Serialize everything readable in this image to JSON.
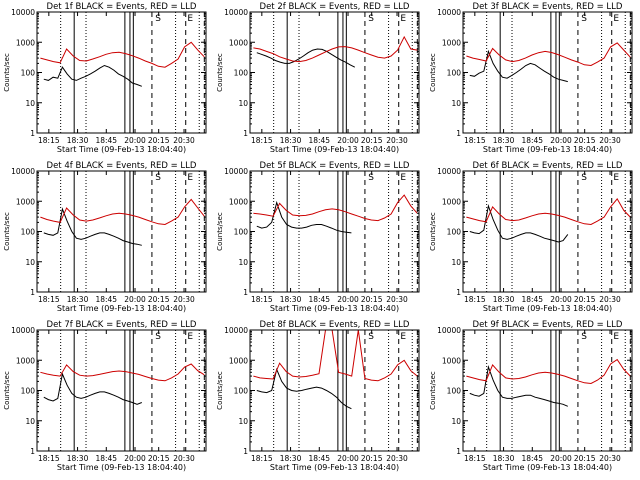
{
  "chart_data": [
    {
      "type": "line",
      "title": "Det 1f BLACK = Events, RED = LLD",
      "xlabel": "Start Time (09-Feb-13 18:04:40)",
      "ylabel": "Counts/sec",
      "x_ticks": [
        "18:15",
        "18:30",
        "18:45",
        "20:00",
        "20:15",
        "20:30"
      ],
      "y_ticks": [
        "1",
        "10",
        "100",
        "1000",
        "10000"
      ],
      "ylim": [
        1,
        10000
      ],
      "yscale": "log",
      "grid": false,
      "markers": [
        "S",
        "E"
      ],
      "series": [
        {
          "name": "Events",
          "color": "#000000",
          "values": [
            60,
            55,
            70,
            65,
            150,
            90,
            60,
            55,
            65,
            75,
            90,
            110,
            140,
            170,
            150,
            120,
            90,
            75,
            60,
            45,
            40,
            35
          ]
        },
        {
          "name": "LLD",
          "color": "#cc0000",
          "values": [
            300,
            260,
            230,
            210,
            600,
            350,
            250,
            240,
            280,
            330,
            400,
            450,
            470,
            420,
            360,
            300,
            240,
            200,
            160,
            150,
            200,
            280,
            700,
            1000,
            550,
            330
          ]
        }
      ]
    },
    {
      "type": "line",
      "title": "Det 2f BLACK = Events, RED = LLD",
      "xlabel": "Start Time (09-Feb-13 18:04:40)",
      "ylabel": "Counts/sec",
      "x_ticks": [
        "18:15",
        "18:30",
        "18:45",
        "20:00",
        "20:15",
        "20:30"
      ],
      "y_ticks": [
        "1",
        "10",
        "100",
        "1000",
        "10000"
      ],
      "ylim": [
        1,
        10000
      ],
      "yscale": "log",
      "grid": false,
      "markers": [
        "S",
        "E"
      ],
      "series": [
        {
          "name": "Events",
          "color": "#000000",
          "values": [
            450,
            400,
            350,
            300,
            250,
            220,
            200,
            200,
            230,
            280,
            350,
            450,
            550,
            600,
            580,
            500,
            400,
            320,
            260,
            220,
            180,
            150
          ]
        },
        {
          "name": "LLD",
          "color": "#cc0000",
          "values": [
            650,
            600,
            500,
            420,
            330,
            280,
            240,
            230,
            250,
            300,
            380,
            480,
            600,
            700,
            720,
            650,
            550,
            450,
            380,
            320,
            300,
            350,
            550,
            1500,
            600,
            550
          ]
        }
      ]
    },
    {
      "type": "line",
      "title": "Det 3f BLACK = Events, RED = LLD",
      "xlabel": "Start Time (09-Feb-13 18:04:40)",
      "ylabel": "Counts/sec",
      "x_ticks": [
        "18:15",
        "18:30",
        "18:45",
        "20:00",
        "20:15",
        "20:30"
      ],
      "y_ticks": [
        "1",
        "10",
        "100",
        "1000",
        "10000"
      ],
      "ylim": [
        1,
        10000
      ],
      "yscale": "log",
      "grid": false,
      "markers": [
        "S",
        "E"
      ],
      "series": [
        {
          "name": "Events",
          "color": "#000000",
          "values": [
            80,
            75,
            95,
            110,
            500,
            200,
            110,
            70,
            65,
            80,
            100,
            130,
            170,
            200,
            180,
            140,
            110,
            90,
            70,
            60,
            55,
            50
          ]
        },
        {
          "name": "LLD",
          "color": "#cc0000",
          "values": [
            350,
            300,
            270,
            240,
            620,
            380,
            260,
            230,
            250,
            300,
            380,
            450,
            500,
            460,
            390,
            320,
            260,
            220,
            180,
            170,
            220,
            300,
            700,
            950,
            550,
            320
          ]
        }
      ]
    },
    {
      "type": "line",
      "title": "Det 4f BLACK = Events, RED = LLD",
      "xlabel": "Start Time (09-Feb-13 18:04:40)",
      "ylabel": "Counts/sec",
      "x_ticks": [
        "18:15",
        "18:30",
        "18:45",
        "20:00",
        "20:15",
        "20:30"
      ],
      "y_ticks": [
        "1",
        "10",
        "100",
        "1000",
        "10000"
      ],
      "ylim": [
        1,
        10000
      ],
      "yscale": "log",
      "grid": false,
      "markers": [
        "S",
        "E"
      ],
      "series": [
        {
          "name": "Events",
          "color": "#000000",
          "values": [
            90,
            80,
            75,
            90,
            550,
            220,
            100,
            60,
            55,
            60,
            70,
            80,
            90,
            90,
            80,
            70,
            60,
            50,
            45,
            40,
            38,
            35
          ]
        },
        {
          "name": "LLD",
          "color": "#cc0000",
          "values": [
            300,
            250,
            220,
            200,
            600,
            350,
            240,
            220,
            240,
            280,
            330,
            380,
            400,
            380,
            340,
            300,
            250,
            210,
            180,
            170,
            220,
            300,
            650,
            1150,
            600,
            320
          ]
        }
      ]
    },
    {
      "type": "line",
      "title": "Det 5f BLACK = Events, RED = LLD",
      "xlabel": "Start Time (09-Feb-13 18:04:40)",
      "ylabel": "Counts/sec",
      "x_ticks": [
        "18:15",
        "18:30",
        "18:45",
        "20:00",
        "20:15",
        "20:30"
      ],
      "y_ticks": [
        "1",
        "10",
        "100",
        "1000",
        "10000"
      ],
      "ylim": [
        1,
        10000
      ],
      "yscale": "log",
      "grid": false,
      "markers": [
        "S",
        "E"
      ],
      "series": [
        {
          "name": "Events",
          "color": "#000000",
          "values": [
            150,
            130,
            140,
            200,
            900,
            300,
            170,
            140,
            130,
            130,
            140,
            160,
            170,
            170,
            150,
            130,
            110,
            100,
            95,
            90
          ]
        },
        {
          "name": "LLD",
          "color": "#cc0000",
          "values": [
            400,
            380,
            350,
            320,
            850,
            500,
            350,
            330,
            340,
            380,
            450,
            520,
            560,
            520,
            450,
            380,
            320,
            270,
            240,
            230,
            280,
            380,
            900,
            1600,
            700,
            400
          ]
        }
      ]
    },
    {
      "type": "line",
      "title": "Det 6f BLACK = Events, RED = LLD",
      "xlabel": "Start Time (09-Feb-13 18:04:40)",
      "ylabel": "Counts/sec",
      "x_ticks": [
        "18:15",
        "18:30",
        "18:45",
        "20:00",
        "20:15",
        "20:30"
      ],
      "y_ticks": [
        "1",
        "10",
        "100",
        "1000",
        "10000"
      ],
      "ylim": [
        1,
        10000
      ],
      "yscale": "log",
      "grid": false,
      "markers": [
        "S",
        "E"
      ],
      "series": [
        {
          "name": "Events",
          "color": "#000000",
          "values": [
            100,
            90,
            85,
            110,
            700,
            250,
            110,
            60,
            55,
            60,
            70,
            80,
            90,
            90,
            80,
            70,
            60,
            55,
            50,
            45,
            50,
            80
          ]
        },
        {
          "name": "LLD",
          "color": "#cc0000",
          "values": [
            300,
            260,
            230,
            210,
            650,
            380,
            250,
            230,
            240,
            280,
            330,
            380,
            400,
            380,
            340,
            300,
            250,
            210,
            180,
            170,
            220,
            300,
            650,
            1200,
            500,
            300
          ]
        }
      ]
    },
    {
      "type": "line",
      "title": "Det 7f BLACK = Events, RED = LLD",
      "xlabel": "Start Time (09-Feb-13 18:04:40)",
      "ylabel": "Counts/sec",
      "x_ticks": [
        "18:15",
        "18:30",
        "18:45",
        "20:00",
        "20:15",
        "20:30"
      ],
      "y_ticks": [
        "1",
        "10",
        "100",
        "1000",
        "10000"
      ],
      "ylim": [
        1,
        10000
      ],
      "yscale": "log",
      "grid": false,
      "markers": [
        "S",
        "E"
      ],
      "series": [
        {
          "name": "Events",
          "color": "#000000",
          "values": [
            60,
            50,
            45,
            55,
            350,
            150,
            80,
            60,
            55,
            60,
            70,
            80,
            90,
            90,
            80,
            70,
            60,
            50,
            45,
            40,
            35,
            40
          ]
        },
        {
          "name": "LLD",
          "color": "#cc0000",
          "values": [
            400,
            350,
            320,
            300,
            700,
            420,
            320,
            300,
            310,
            340,
            380,
            420,
            440,
            420,
            380,
            340,
            290,
            250,
            220,
            210,
            260,
            350,
            600,
            750,
            450,
            330
          ]
        }
      ]
    },
    {
      "type": "line",
      "title": "Det 8f BLACK = Events, RED = LLD",
      "xlabel": "Start Time (09-Feb-13 18:04:40)",
      "ylabel": "Counts/sec",
      "x_ticks": [
        "18:15",
        "18:30",
        "18:45",
        "20:00",
        "20:15",
        "20:30"
      ],
      "y_ticks": [
        "1",
        "10",
        "100",
        "1000",
        "10000"
      ],
      "ylim": [
        1,
        10000
      ],
      "yscale": "log",
      "grid": false,
      "markers": [
        "S",
        "E"
      ],
      "series": [
        {
          "name": "Events",
          "color": "#000000",
          "values": [
            100,
            90,
            85,
            100,
            500,
            200,
            120,
            100,
            95,
            100,
            110,
            120,
            130,
            120,
            100,
            80,
            60,
            40,
            30,
            25
          ]
        },
        {
          "name": "LLD",
          "color": "#cc0000",
          "values": [
            300,
            260,
            250,
            240,
            800,
            420,
            300,
            280,
            290,
            320,
            360,
            10000,
            10000,
            400,
            350,
            300,
            10000,
            250,
            220,
            210,
            260,
            350,
            700,
            1000,
            450,
            300
          ]
        }
      ]
    },
    {
      "type": "line",
      "title": "Det 9f BLACK = Events, RED = LLD",
      "xlabel": "Start Time (09-Feb-13 18:04:40)",
      "ylabel": "Counts/sec",
      "x_ticks": [
        "18:15",
        "18:30",
        "18:45",
        "20:00",
        "20:15",
        "20:30"
      ],
      "y_ticks": [
        "1",
        "10",
        "100",
        "1000",
        "10000"
      ],
      "ylim": [
        1,
        10000
      ],
      "yscale": "log",
      "grid": false,
      "markers": [
        "S",
        "E"
      ],
      "series": [
        {
          "name": "Events",
          "color": "#000000",
          "values": [
            80,
            70,
            65,
            80,
            600,
            220,
            100,
            60,
            55,
            55,
            60,
            65,
            70,
            70,
            60,
            55,
            50,
            45,
            40,
            38,
            35,
            30
          ]
        },
        {
          "name": "LLD",
          "color": "#cc0000",
          "values": [
            300,
            260,
            230,
            210,
            700,
            400,
            260,
            240,
            250,
            280,
            330,
            380,
            400,
            380,
            340,
            300,
            250,
            210,
            180,
            170,
            220,
            320,
            750,
            1050,
            500,
            300
          ]
        }
      ]
    }
  ]
}
